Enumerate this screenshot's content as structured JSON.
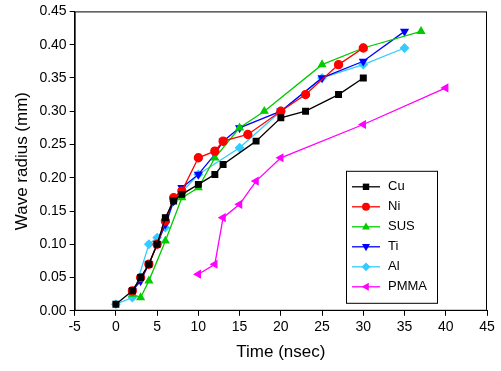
{
  "chart_data": {
    "type": "line",
    "x_label": "Time (nsec)",
    "y_label": "Wave radius (mm)",
    "xlim": [
      -5,
      45
    ],
    "xticks": [
      -5,
      0,
      5,
      10,
      15,
      20,
      25,
      30,
      35,
      40,
      45
    ],
    "ylim": [
      0,
      0.45
    ],
    "yticks": [
      {
        "value": 0,
        "label": "0.00"
      },
      {
        "value": 0.05,
        "label": "0.05"
      },
      {
        "value": 0.1,
        "label": "0.10"
      },
      {
        "value": 0.15,
        "label": "0.15"
      },
      {
        "value": 0.2,
        "label": "0.20"
      },
      {
        "value": 0.25,
        "label": "0.25"
      },
      {
        "value": 0.3,
        "label": "0.30"
      },
      {
        "value": 0.35,
        "label": "0.35"
      },
      {
        "value": 0.4,
        "label": "0.40"
      },
      {
        "value": 0.45,
        "label": "0.45"
      }
    ],
    "grid": false,
    "legend": "lower right",
    "series": [
      {
        "name": "Cu",
        "color": "#000000",
        "marker": "square",
        "x": [
          0,
          2,
          3,
          4,
          5,
          6,
          7,
          8,
          10,
          12,
          13,
          17,
          20,
          23,
          27,
          30
        ],
        "values": [
          0.01,
          0.03,
          0.05,
          0.07,
          0.1,
          0.14,
          0.165,
          0.175,
          0.19,
          0.205,
          0.22,
          0.255,
          0.29,
          0.3,
          0.325,
          0.35
        ]
      },
      {
        "name": "Ni",
        "color": "#ff0000",
        "marker": "circle",
        "x": [
          2,
          3,
          4,
          5,
          6,
          7,
          8,
          10,
          12,
          13,
          16,
          20,
          23,
          27,
          30
        ],
        "values": [
          0.03,
          0.05,
          0.07,
          0.1,
          0.135,
          0.17,
          0.18,
          0.23,
          0.24,
          0.255,
          0.265,
          0.3,
          0.325,
          0.37,
          0.395
        ]
      },
      {
        "name": "SUS",
        "color": "#00cc00",
        "marker": "triangle-up",
        "x": [
          2,
          3,
          4,
          6,
          8,
          10,
          12,
          15,
          18,
          25,
          30,
          37
        ],
        "values": [
          0.025,
          0.02,
          0.045,
          0.105,
          0.17,
          0.185,
          0.23,
          0.275,
          0.3,
          0.37,
          0.395,
          0.42
        ]
      },
      {
        "name": "Ti",
        "color": "#0000ff",
        "marker": "triangle-down",
        "x": [
          2,
          3,
          4,
          5,
          6,
          7,
          8,
          10,
          12,
          13,
          15,
          20,
          25,
          30,
          35
        ],
        "values": [
          0.03,
          0.045,
          0.07,
          0.1,
          0.13,
          0.165,
          0.185,
          0.205,
          0.235,
          0.255,
          0.275,
          0.3,
          0.35,
          0.375,
          0.42
        ]
      },
      {
        "name": "Al",
        "color": "#33ccff",
        "marker": "diamond",
        "x": [
          0,
          2,
          4,
          5,
          6,
          7,
          10,
          15,
          20,
          25,
          30,
          35
        ],
        "values": [
          0.01,
          0.02,
          0.1,
          0.11,
          0.125,
          0.165,
          0.205,
          0.245,
          0.3,
          0.35,
          0.37,
          0.395
        ]
      },
      {
        "name": "PMMA",
        "color": "#ff00ff",
        "marker": "triangle-left",
        "x": [
          10,
          12,
          13,
          15,
          17,
          20,
          30,
          40
        ],
        "values": [
          0.055,
          0.07,
          0.14,
          0.16,
          0.195,
          0.23,
          0.28,
          0.335
        ]
      }
    ]
  }
}
